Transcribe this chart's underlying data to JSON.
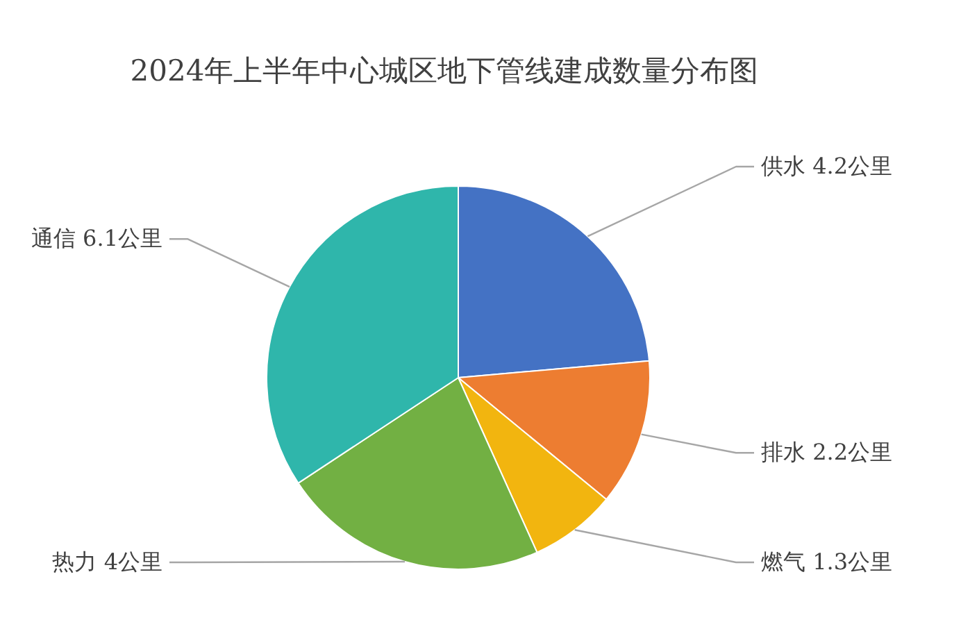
{
  "chart_data": {
    "type": "pie",
    "title": "2024年上半年中心城区地下管线建成数量分布图",
    "categories": [
      "供水",
      "排水",
      "燃气",
      "热力",
      "通信"
    ],
    "values": [
      4.2,
      2.2,
      1.3,
      4,
      6.1
    ],
    "colors": [
      "#4472c4",
      "#ed7d31",
      "#f2b50f",
      "#72b043",
      "#2fb6ab"
    ],
    "value_labels": [
      "4.2公里",
      "2.2公里",
      "1.3公里",
      "4公里",
      "6.1公里"
    ]
  }
}
